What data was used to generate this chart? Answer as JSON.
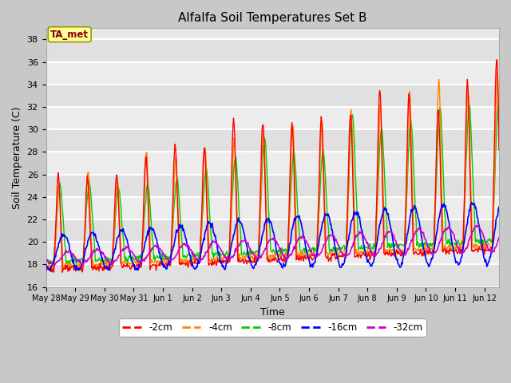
{
  "title": "Alfalfa Soil Temperatures Set B",
  "xlabel": "Time",
  "ylabel": "Soil Temperature (C)",
  "ylim": [
    16,
    39
  ],
  "yticks": [
    16,
    18,
    20,
    22,
    24,
    26,
    28,
    30,
    32,
    34,
    36,
    38
  ],
  "fig_bg": "#c8c8c8",
  "axes_bg": "#e8e8e8",
  "annotation_text": "TA_met",
  "annotation_color": "#8b0000",
  "annotation_bg": "#ffff99",
  "annotation_edge": "#999900",
  "line_colors": {
    "-2cm": "#ff0000",
    "-4cm": "#ff8800",
    "-8cm": "#00cc00",
    "-16cm": "#0000ff",
    "-32cm": "#cc00cc"
  },
  "xtick_labels": [
    "May 28",
    "May 29",
    "May 30",
    "May 31",
    "Jun 1",
    "Jun 2",
    "Jun 3",
    "Jun 4",
    "Jun 5",
    "Jun 6",
    "Jun 7",
    "Jun 8",
    "Jun 9",
    "Jun 10",
    "Jun 11",
    "Jun 12"
  ],
  "xtick_positions": [
    0,
    1,
    2,
    3,
    4,
    5,
    6,
    7,
    8,
    9,
    10,
    11,
    12,
    13,
    14,
    15
  ],
  "xlim": [
    0,
    15.5
  ]
}
